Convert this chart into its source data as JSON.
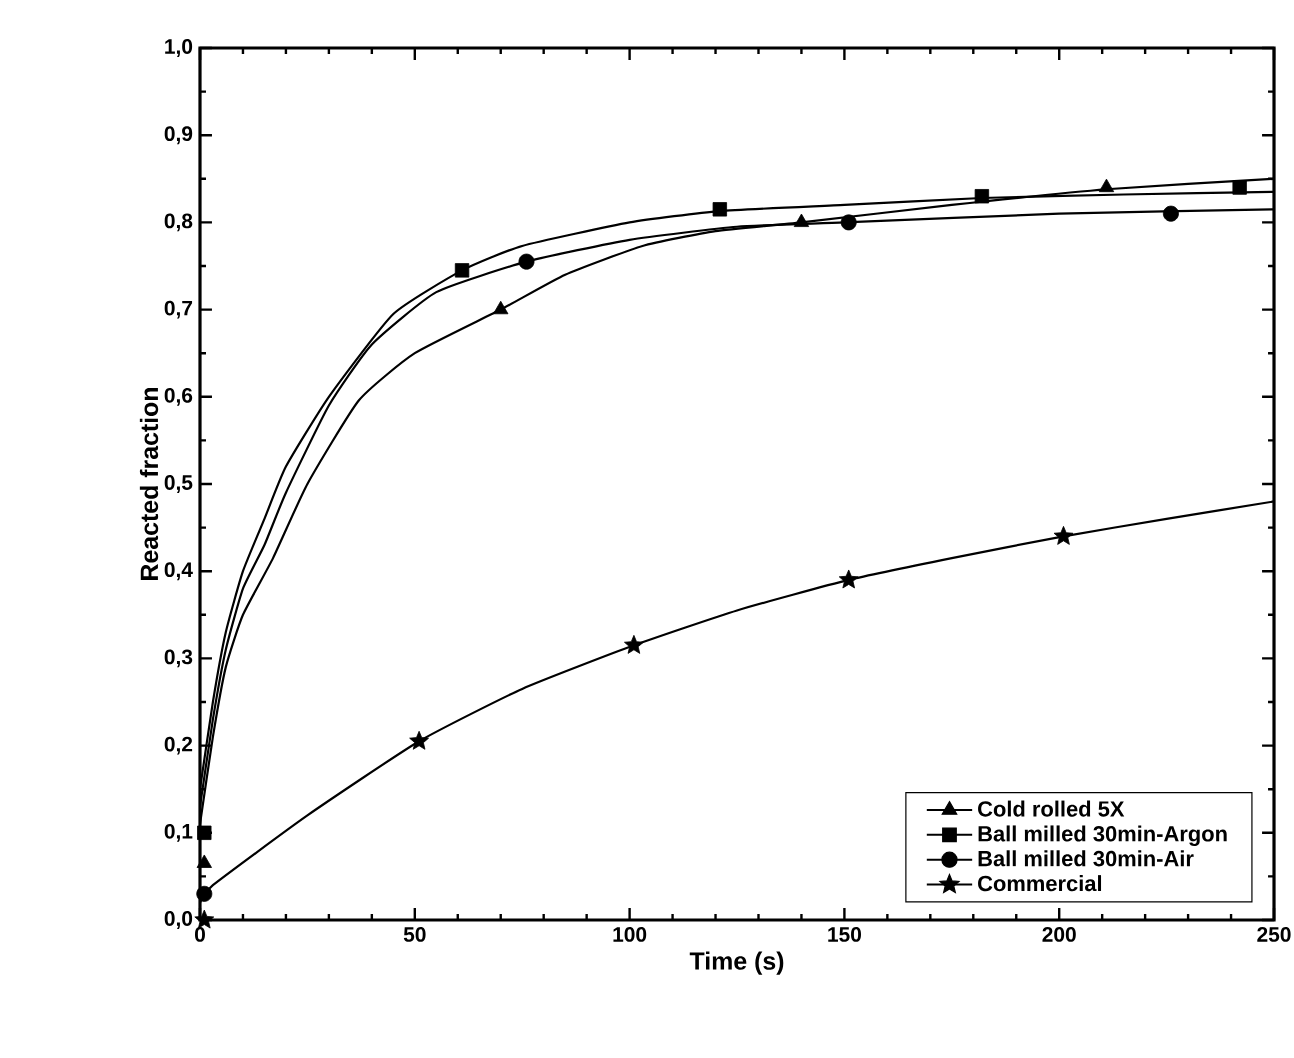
{
  "chart_data": {
    "type": "scatter",
    "xlabel": "Time (s)",
    "ylabel": "Reacted fraction",
    "xlim": [
      0,
      250
    ],
    "ylim": [
      0,
      1
    ],
    "xticks": [
      0,
      50,
      100,
      150,
      200,
      250
    ],
    "yticks": [
      {
        "value": 0,
        "label": "0,0"
      },
      {
        "value": 0.1,
        "label": "0,1"
      },
      {
        "value": 0.2,
        "label": "0,2"
      },
      {
        "value": 0.3,
        "label": "0,3"
      },
      {
        "value": 0.4,
        "label": "0,4"
      },
      {
        "value": 0.5,
        "label": "0,5"
      },
      {
        "value": 0.6,
        "label": "0,6"
      },
      {
        "value": 0.7,
        "label": "0,7"
      },
      {
        "value": 0.8,
        "label": "0,8"
      },
      {
        "value": 0.9,
        "label": "0,9"
      },
      {
        "value": 1,
        "label": "1,0"
      }
    ],
    "grid": false,
    "legend": "bottom right",
    "series": [
      {
        "name": "Cold rolled 5X",
        "marker": "triangle",
        "color": "#000000",
        "x": [
          1,
          70,
          140,
          211
        ],
        "values": [
          0.065,
          0.7,
          0.8,
          0.84
        ]
      },
      {
        "name": "Ball milled 30min-Argon",
        "marker": "square",
        "color": "#000000",
        "x": [
          1,
          61,
          121,
          182,
          242
        ],
        "values": [
          0.1,
          0.745,
          0.815,
          0.83,
          0.84
        ]
      },
      {
        "name": "Ball milled 30min-Air",
        "marker": "circle",
        "color": "#000000",
        "x": [
          1,
          76,
          151,
          226
        ],
        "values": [
          0.03,
          0.755,
          0.8,
          0.81
        ]
      },
      {
        "name": "Commercial",
        "marker": "star",
        "color": "#000000",
        "x": [
          1,
          51,
          101,
          151,
          201
        ],
        "values": [
          0.0,
          0.205,
          0.315,
          0.39,
          0.44
        ]
      },
      {
        "type": "line",
        "marker": "none",
        "line_style": "solid",
        "color": "#000000",
        "x": [
          0,
          3,
          6,
          10,
          17,
          25,
          37,
          50,
          70,
          85,
          103,
          120,
          140,
          175,
          211,
          250
        ],
        "values": [
          0.11,
          0.21,
          0.29,
          0.35,
          0.415,
          0.5,
          0.596,
          0.65,
          0.7,
          0.74,
          0.773,
          0.79,
          0.8,
          0.82,
          0.838,
          0.85
        ]
      },
      {
        "type": "line",
        "marker": "none",
        "line_style": "solid",
        "color": "#000000",
        "x": [
          0,
          3,
          6,
          10,
          15,
          20,
          30,
          45,
          61,
          75,
          100,
          121,
          150,
          182,
          215,
          250
        ],
        "values": [
          0.15,
          0.25,
          0.33,
          0.4,
          0.46,
          0.52,
          0.6,
          0.695,
          0.745,
          0.773,
          0.8,
          0.813,
          0.82,
          0.828,
          0.832,
          0.835
        ]
      },
      {
        "type": "line",
        "marker": "none",
        "line_style": "solid",
        "color": "#000000",
        "x": [
          0,
          3,
          6,
          10,
          15,
          20,
          30,
          40,
          55,
          76,
          100,
          125,
          150,
          200,
          250
        ],
        "values": [
          0.13,
          0.23,
          0.31,
          0.38,
          0.43,
          0.49,
          0.59,
          0.66,
          0.72,
          0.755,
          0.78,
          0.795,
          0.8,
          0.81,
          0.815
        ]
      },
      {
        "type": "line",
        "marker": "none",
        "line_style": "solid",
        "color": "#000000",
        "x": [
          0,
          3,
          25,
          51,
          75,
          101,
          125,
          151,
          175,
          201,
          225,
          250
        ],
        "values": [
          0.02,
          0.04,
          0.12,
          0.205,
          0.265,
          0.315,
          0.355,
          0.39,
          0.415,
          0.44,
          0.46,
          0.48
        ]
      }
    ]
  }
}
